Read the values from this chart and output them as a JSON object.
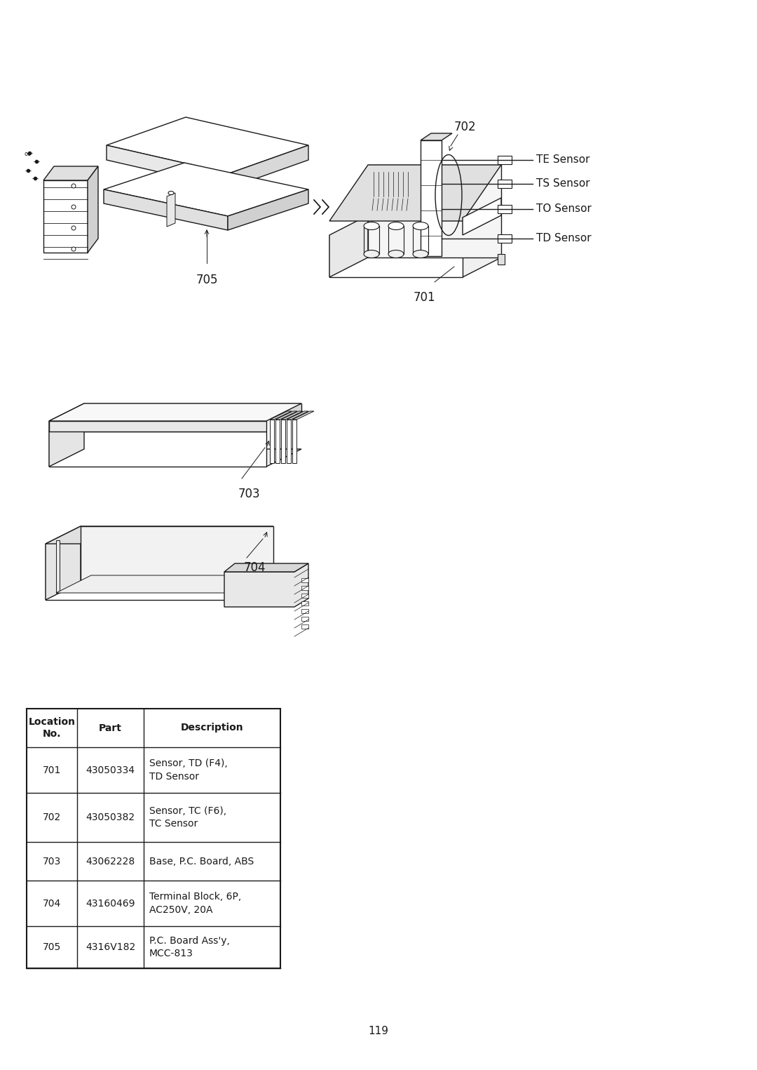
{
  "page_number": "119",
  "bg_color": "#ffffff",
  "line_color": "#1a1a1a",
  "sensor_labels": [
    "TE Sensor",
    "TS Sensor",
    "TO Sensor",
    "TD Sensor"
  ],
  "table_rows": [
    [
      "701",
      "43050334",
      "Sensor, TD (F4),\nTD Sensor"
    ],
    [
      "702",
      "43050382",
      "Sensor, TC (F6),\nTC Sensor"
    ],
    [
      "703",
      "43062228",
      "Base, P.C. Board, ABS"
    ],
    [
      "704",
      "43160469",
      "Terminal Block, 6P,\nAC250V, 20A"
    ],
    [
      "705",
      "4316V182",
      "P.C. Board Ass'y,\nMCC-813"
    ]
  ]
}
